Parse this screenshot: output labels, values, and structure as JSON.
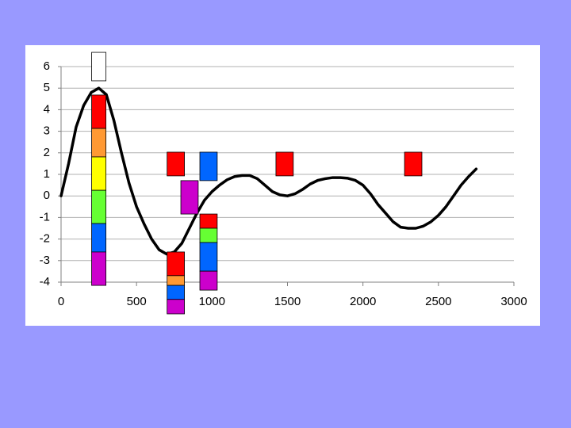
{
  "chart_data": {
    "type": "line",
    "xlim": [
      0,
      3000
    ],
    "xticks": [
      0,
      500,
      1000,
      1500,
      2000,
      2500,
      3000
    ],
    "ylim": [
      -4,
      6
    ],
    "yticks": [
      -4,
      -3,
      -2,
      -1,
      0,
      1,
      2,
      3,
      4,
      5,
      6
    ],
    "grid": true,
    "series": [
      {
        "color": "#000000",
        "x": [
          0,
          50,
          100,
          150,
          200,
          250,
          300,
          350,
          400,
          450,
          500,
          550,
          600,
          650,
          700,
          750,
          800,
          850,
          900,
          950,
          1000,
          1050,
          1100,
          1150,
          1200,
          1250,
          1300,
          1350,
          1400,
          1450,
          1500,
          1550,
          1600,
          1650,
          1700,
          1750,
          1800,
          1850,
          1900,
          1950,
          2000,
          2050,
          2100,
          2150,
          2200,
          2250,
          2300,
          2350,
          2400,
          2450,
          2500,
          2550,
          2600,
          2650,
          2700,
          2750
        ],
        "values": [
          0,
          1.5,
          3.2,
          4.2,
          4.8,
          5,
          4.7,
          3.5,
          2,
          0.6,
          -0.5,
          -1.3,
          -2,
          -2.5,
          -2.7,
          -2.6,
          -2.2,
          -1.5,
          -0.8,
          -0.2,
          0.2,
          0.5,
          0.75,
          0.9,
          0.95,
          0.95,
          0.8,
          0.5,
          0.2,
          0.05,
          0,
          0.1,
          0.3,
          0.55,
          0.72,
          0.8,
          0.85,
          0.85,
          0.82,
          0.72,
          0.5,
          0.1,
          -0.4,
          -0.8,
          -1.2,
          -1.45,
          -1.5,
          -1.5,
          -1.4,
          -1.2,
          -0.9,
          -0.5,
          0,
          0.5,
          0.9,
          1.25
        ]
      }
    ],
    "boxes": [
      {
        "x": 250,
        "width": 95,
        "y0": 5.34,
        "y1": 6.66,
        "color": "#ffffff"
      },
      {
        "x": 250,
        "width": 95,
        "y0": 3.13,
        "y1": 4.68,
        "color": "#ff0000"
      },
      {
        "x": 250,
        "width": 95,
        "y0": 1.81,
        "y1": 3.13,
        "color": "#ff9933"
      },
      {
        "x": 250,
        "width": 95,
        "y0": 0.26,
        "y1": 1.81,
        "color": "#ffff00"
      },
      {
        "x": 250,
        "width": 95,
        "y0": -1.28,
        "y1": 0.26,
        "color": "#66ff33"
      },
      {
        "x": 250,
        "width": 95,
        "y0": -2.6,
        "y1": -1.28,
        "color": "#0066ff"
      },
      {
        "x": 250,
        "width": 95,
        "y0": -4.15,
        "y1": -2.6,
        "color": "#cc00cc"
      },
      {
        "x": 760,
        "width": 115,
        "y0": 0.93,
        "y1": 2.03,
        "color": "#ff0000"
      },
      {
        "x": 760,
        "width": 115,
        "y0": -3.7,
        "y1": -2.6,
        "color": "#ff0000"
      },
      {
        "x": 760,
        "width": 115,
        "y0": -4.15,
        "y1": -3.7,
        "color": "#ff9933"
      },
      {
        "x": 760,
        "width": 115,
        "y0": -4.8,
        "y1": -4.15,
        "color": "#0066ff"
      },
      {
        "x": 760,
        "width": 115,
        "y0": -5.47,
        "y1": -4.8,
        "color": "#cc00cc"
      },
      {
        "x": 851,
        "width": 115,
        "y0": -0.84,
        "y1": 0.71,
        "color": "#cc00cc"
      },
      {
        "x": 977,
        "width": 115,
        "y0": 0.71,
        "y1": 2.03,
        "color": "#0066ff"
      },
      {
        "x": 977,
        "width": 115,
        "y0": -1.5,
        "y1": -0.84,
        "color": "#ff0000"
      },
      {
        "x": 977,
        "width": 115,
        "y0": -2.16,
        "y1": -1.5,
        "color": "#66ff33"
      },
      {
        "x": 977,
        "width": 115,
        "y0": -3.49,
        "y1": -2.16,
        "color": "#0066ff"
      },
      {
        "x": 977,
        "width": 115,
        "y0": -4.37,
        "y1": -3.49,
        "color": "#cc00cc"
      },
      {
        "x": 1481,
        "width": 115,
        "y0": 0.93,
        "y1": 2.03,
        "color": "#ff0000"
      },
      {
        "x": 2333,
        "width": 115,
        "y0": 0.93,
        "y1": 2.03,
        "color": "#ff0000"
      }
    ]
  }
}
